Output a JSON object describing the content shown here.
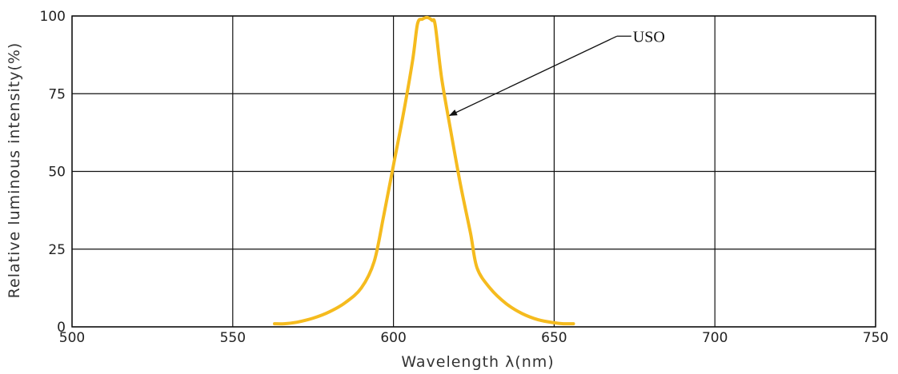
{
  "chart_data": {
    "type": "line",
    "xlabel": "Wavelength λ(nm)",
    "ylabel": "Relative luminous intensity(%)",
    "xlim": [
      500,
      750
    ],
    "ylim": [
      0,
      100
    ],
    "x_ticks": [
      500,
      550,
      600,
      650,
      700,
      750
    ],
    "y_ticks": [
      0,
      25,
      50,
      75,
      100
    ],
    "grid": true,
    "series": [
      {
        "name": "USO",
        "color": "#F5BB1E",
        "points": [
          [
            563,
            1
          ],
          [
            566,
            1
          ],
          [
            570,
            1.5
          ],
          [
            575,
            2.8
          ],
          [
            580,
            4.8
          ],
          [
            585,
            7.8
          ],
          [
            590,
            12.5
          ],
          [
            594,
            21
          ],
          [
            597,
            36
          ],
          [
            600,
            52
          ],
          [
            603,
            68
          ],
          [
            606,
            86
          ],
          [
            607.5,
            97.5
          ],
          [
            609,
            99
          ],
          [
            610.5,
            99.5
          ],
          [
            612,
            98.6
          ],
          [
            613,
            97
          ],
          [
            615,
            80
          ],
          [
            618,
            62
          ],
          [
            621,
            45
          ],
          [
            624,
            30
          ],
          [
            626,
            19
          ],
          [
            630,
            12.5
          ],
          [
            635,
            7.5
          ],
          [
            640,
            4.3
          ],
          [
            645,
            2.3
          ],
          [
            650,
            1.3
          ],
          [
            653,
            1
          ],
          [
            656,
            1
          ]
        ]
      }
    ],
    "annotations": [
      {
        "text": "USO",
        "target": [
          617.5,
          68
        ],
        "label_at": [
          675,
          93.5
        ]
      }
    ]
  }
}
